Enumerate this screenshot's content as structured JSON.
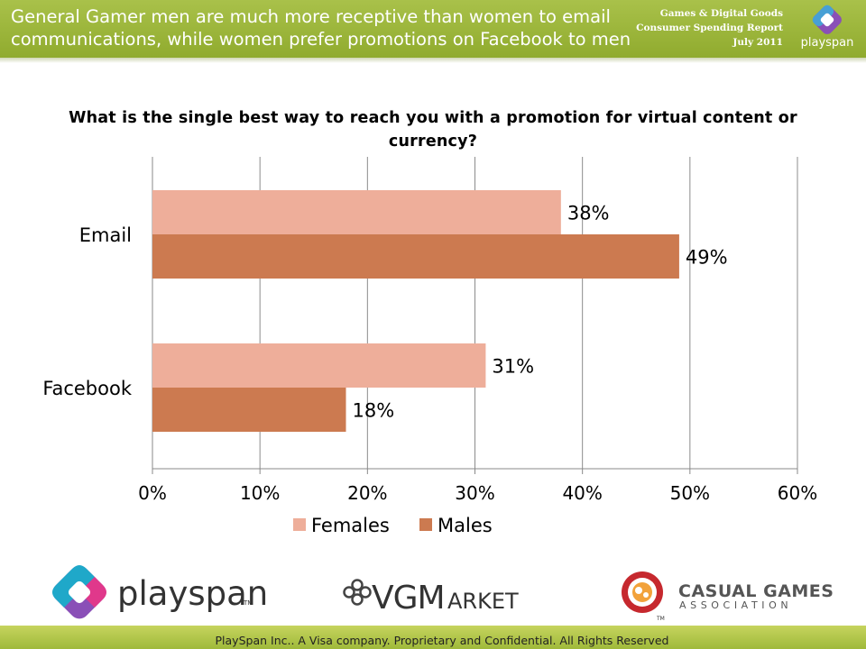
{
  "header": {
    "headline": "General Gamer men are much more receptive than women to email communications, while women prefer promotions on Facebook to men",
    "report_line1": "Games & Digital Goods",
    "report_line2": "Consumer Spending Report",
    "report_line3": "July 2011",
    "logo_text": "playspan"
  },
  "chart_data": {
    "type": "bar",
    "orientation": "horizontal",
    "title": "What is the single best way to reach you with a promotion for virtual content or currency?",
    "categories": [
      "Email",
      "Facebook"
    ],
    "series": [
      {
        "name": "Females",
        "values": [
          38,
          31
        ],
        "labels": [
          "38%",
          "31%"
        ],
        "color": "#eeae9a"
      },
      {
        "name": "Males",
        "values": [
          49,
          18
        ],
        "labels": [
          "49%",
          "18%"
        ],
        "color": "#cc7a50"
      }
    ],
    "xlim": [
      0,
      60
    ],
    "xticks": [
      0,
      10,
      20,
      30,
      40,
      50,
      60
    ],
    "xtick_labels": [
      "0%",
      "10%",
      "20%",
      "30%",
      "40%",
      "50%",
      "60%"
    ],
    "grid": true,
    "legend": "bottom"
  },
  "logos": {
    "playspan": "playspan",
    "playspan_tm": "TM",
    "vgm": "VGM",
    "vgm_suffix": "ARKET",
    "cga_line1": "CASUAL GAMES",
    "cga_line2": "ASSOCIATION",
    "cga_tm": "TM"
  },
  "footer": {
    "text": "PlaySpan Inc.. A Visa company. Proprietary and Confidential. All Rights Reserved"
  }
}
